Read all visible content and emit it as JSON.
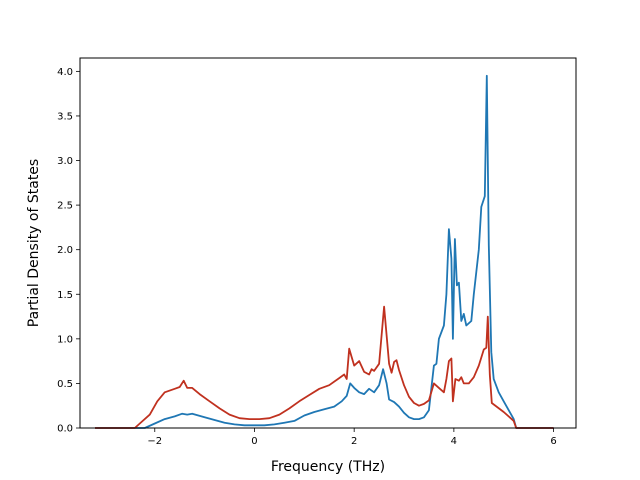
{
  "chart_data": {
    "type": "line",
    "title": "",
    "xlabel": "Frequency (THz)",
    "ylabel": "Partial Density of States",
    "xlim": [
      -3.5,
      6.45
    ],
    "ylim": [
      0.0,
      4.15
    ],
    "xticks": [
      -2,
      0,
      2,
      4,
      6
    ],
    "xtick_labels": [
      "−2",
      "0",
      "2",
      "4",
      "6"
    ],
    "yticks": [
      0.0,
      0.5,
      1.0,
      1.5,
      2.0,
      2.5,
      3.0,
      3.5,
      4.0
    ],
    "ytick_labels": [
      "0.0",
      "0.5",
      "1.0",
      "1.5",
      "2.0",
      "2.5",
      "3.0",
      "3.5",
      "4.0"
    ],
    "grid": false,
    "legend": "none",
    "series": [
      {
        "color": "#1f77b4",
        "points": [
          [
            -3.2,
            0.0
          ],
          [
            -2.5,
            0.0
          ],
          [
            -2.2,
            0.0
          ],
          [
            -2.0,
            0.05
          ],
          [
            -1.8,
            0.1
          ],
          [
            -1.6,
            0.13
          ],
          [
            -1.45,
            0.16
          ],
          [
            -1.35,
            0.15
          ],
          [
            -1.25,
            0.16
          ],
          [
            -1.0,
            0.12
          ],
          [
            -0.8,
            0.09
          ],
          [
            -0.6,
            0.06
          ],
          [
            -0.4,
            0.04
          ],
          [
            -0.2,
            0.03
          ],
          [
            0.0,
            0.03
          ],
          [
            0.2,
            0.03
          ],
          [
            0.4,
            0.04
          ],
          [
            0.6,
            0.06
          ],
          [
            0.8,
            0.08
          ],
          [
            1.0,
            0.14
          ],
          [
            1.2,
            0.18
          ],
          [
            1.4,
            0.21
          ],
          [
            1.6,
            0.24
          ],
          [
            1.75,
            0.3
          ],
          [
            1.85,
            0.36
          ],
          [
            1.92,
            0.5
          ],
          [
            2.0,
            0.45
          ],
          [
            2.1,
            0.4
          ],
          [
            2.2,
            0.38
          ],
          [
            2.3,
            0.44
          ],
          [
            2.4,
            0.4
          ],
          [
            2.5,
            0.48
          ],
          [
            2.58,
            0.66
          ],
          [
            2.65,
            0.5
          ],
          [
            2.7,
            0.32
          ],
          [
            2.8,
            0.29
          ],
          [
            2.9,
            0.24
          ],
          [
            3.0,
            0.17
          ],
          [
            3.1,
            0.12
          ],
          [
            3.2,
            0.1
          ],
          [
            3.3,
            0.1
          ],
          [
            3.4,
            0.12
          ],
          [
            3.5,
            0.2
          ],
          [
            3.55,
            0.45
          ],
          [
            3.6,
            0.7
          ],
          [
            3.65,
            0.72
          ],
          [
            3.7,
            1.0
          ],
          [
            3.8,
            1.15
          ],
          [
            3.85,
            1.5
          ],
          [
            3.9,
            2.23
          ],
          [
            3.95,
            1.9
          ],
          [
            3.98,
            1.0
          ],
          [
            4.02,
            2.12
          ],
          [
            4.06,
            1.6
          ],
          [
            4.1,
            1.63
          ],
          [
            4.15,
            1.2
          ],
          [
            4.2,
            1.28
          ],
          [
            4.25,
            1.15
          ],
          [
            4.35,
            1.2
          ],
          [
            4.4,
            1.5
          ],
          [
            4.5,
            2.0
          ],
          [
            4.55,
            2.48
          ],
          [
            4.62,
            2.6
          ],
          [
            4.66,
            3.95
          ],
          [
            4.7,
            2.05
          ],
          [
            4.75,
            0.85
          ],
          [
            4.8,
            0.55
          ],
          [
            4.9,
            0.4
          ],
          [
            5.0,
            0.3
          ],
          [
            5.1,
            0.2
          ],
          [
            5.2,
            0.1
          ],
          [
            5.25,
            0.0
          ],
          [
            6.0,
            0.0
          ]
        ]
      },
      {
        "color": "#c0311f",
        "points": [
          [
            -3.2,
            0.0
          ],
          [
            -2.4,
            0.0
          ],
          [
            -2.3,
            0.05
          ],
          [
            -2.1,
            0.15
          ],
          [
            -1.95,
            0.3
          ],
          [
            -1.8,
            0.4
          ],
          [
            -1.6,
            0.44
          ],
          [
            -1.5,
            0.46
          ],
          [
            -1.42,
            0.53
          ],
          [
            -1.35,
            0.45
          ],
          [
            -1.25,
            0.45
          ],
          [
            -1.1,
            0.38
          ],
          [
            -0.9,
            0.3
          ],
          [
            -0.7,
            0.22
          ],
          [
            -0.5,
            0.15
          ],
          [
            -0.3,
            0.11
          ],
          [
            -0.1,
            0.1
          ],
          [
            0.1,
            0.1
          ],
          [
            0.3,
            0.11
          ],
          [
            0.5,
            0.15
          ],
          [
            0.7,
            0.22
          ],
          [
            0.9,
            0.3
          ],
          [
            1.1,
            0.37
          ],
          [
            1.3,
            0.44
          ],
          [
            1.5,
            0.48
          ],
          [
            1.7,
            0.56
          ],
          [
            1.8,
            0.6
          ],
          [
            1.85,
            0.55
          ],
          [
            1.9,
            0.89
          ],
          [
            2.0,
            0.7
          ],
          [
            2.1,
            0.75
          ],
          [
            2.2,
            0.63
          ],
          [
            2.3,
            0.6
          ],
          [
            2.35,
            0.66
          ],
          [
            2.4,
            0.64
          ],
          [
            2.5,
            0.72
          ],
          [
            2.6,
            1.36
          ],
          [
            2.7,
            0.72
          ],
          [
            2.75,
            0.62
          ],
          [
            2.8,
            0.74
          ],
          [
            2.85,
            0.76
          ],
          [
            2.9,
            0.65
          ],
          [
            3.0,
            0.48
          ],
          [
            3.1,
            0.35
          ],
          [
            3.2,
            0.28
          ],
          [
            3.3,
            0.25
          ],
          [
            3.4,
            0.27
          ],
          [
            3.5,
            0.31
          ],
          [
            3.6,
            0.5
          ],
          [
            3.7,
            0.45
          ],
          [
            3.8,
            0.4
          ],
          [
            3.85,
            0.55
          ],
          [
            3.9,
            0.75
          ],
          [
            3.95,
            0.78
          ],
          [
            3.98,
            0.3
          ],
          [
            4.03,
            0.55
          ],
          [
            4.1,
            0.53
          ],
          [
            4.15,
            0.57
          ],
          [
            4.2,
            0.5
          ],
          [
            4.3,
            0.5
          ],
          [
            4.4,
            0.57
          ],
          [
            4.5,
            0.7
          ],
          [
            4.6,
            0.88
          ],
          [
            4.65,
            0.9
          ],
          [
            4.68,
            1.25
          ],
          [
            4.72,
            0.6
          ],
          [
            4.76,
            0.28
          ],
          [
            5.0,
            0.18
          ],
          [
            5.2,
            0.08
          ],
          [
            5.25,
            0.0
          ],
          [
            6.0,
            0.0
          ]
        ]
      }
    ]
  }
}
